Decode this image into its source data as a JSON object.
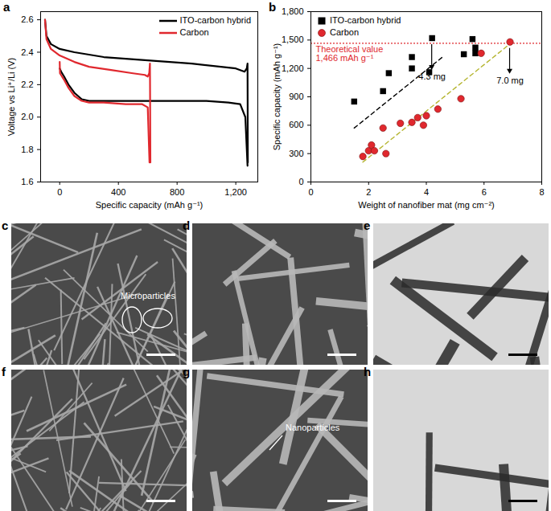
{
  "chart_data": [
    {
      "type": "line",
      "panel": "a",
      "xlabel": "Specific capacity (mAh g⁻¹)",
      "ylabel": "Voltage vs Li⁺/Li (V)",
      "xlim": [
        -130,
        1350
      ],
      "xticks": [
        0,
        400,
        800,
        {
          "value": 1200,
          "label": "1,200"
        }
      ],
      "ylim": [
        1.6,
        2.65
      ],
      "yticks": [
        1.6,
        1.8,
        {
          "value": 2,
          "label": "2.0"
        },
        2.2,
        2.4,
        2.6
      ],
      "legend": "top-right",
      "series": [
        {
          "name": "ITO-carbon hybrid",
          "color": "#000000",
          "x": [
            0,
            10,
            30,
            60,
            100,
            150,
            200,
            400,
            700,
            1000,
            1150,
            1230,
            1265,
            1280,
            null,
            -100,
            -90,
            -60,
            0,
            100,
            300,
            600,
            900,
            1200,
            1260,
            1275,
            1280,
            1282
          ],
          "values": [
            2.3,
            2.28,
            2.25,
            2.2,
            2.15,
            2.11,
            2.1,
            2.1,
            2.1,
            2.1,
            2.09,
            2.08,
            2.0,
            1.7,
            null,
            2.6,
            2.5,
            2.45,
            2.42,
            2.4,
            2.37,
            2.35,
            2.33,
            2.3,
            2.28,
            2.3,
            2.33,
            1.72
          ]
        },
        {
          "name": "Carbon",
          "color": "#e0282e",
          "x": [
            0,
            2,
            30,
            60,
            100,
            150,
            200,
            300,
            450,
            560,
            600,
            612,
            null,
            -100,
            -90,
            -60,
            0,
            100,
            200,
            350,
            500,
            580,
            600,
            610,
            615,
            618
          ],
          "values": [
            2.34,
            2.27,
            2.23,
            2.18,
            2.13,
            2.1,
            2.09,
            2.09,
            2.08,
            2.08,
            2.06,
            1.72,
            null,
            2.6,
            2.48,
            2.42,
            2.38,
            2.34,
            2.31,
            2.29,
            2.27,
            2.26,
            2.25,
            2.27,
            2.33,
            1.72
          ]
        }
      ]
    },
    {
      "type": "scatter",
      "panel": "b",
      "xlabel": "Weight of nanofiber mat (mg cm⁻²)",
      "ylabel": "Specific capacity (mAh g⁻¹)",
      "xlim": [
        0,
        8
      ],
      "xticks": [
        0,
        2,
        4,
        6,
        8
      ],
      "ylim": [
        0,
        1800
      ],
      "yticks": [
        0,
        300,
        600,
        900,
        {
          "value": 1200,
          "label": "1,200"
        },
        {
          "value": 1500,
          "label": "1,500"
        },
        {
          "value": 1800,
          "label": "1,800"
        }
      ],
      "legend": "top-left",
      "series": [
        {
          "name": "ITO-carbon hybrid",
          "color": "#000000",
          "marker": "square",
          "x": [
            1.5,
            2.5,
            2.7,
            3.5,
            3.5,
            4.1,
            4.2,
            5.3,
            5.6,
            5.7,
            5.7
          ],
          "values": [
            850,
            960,
            1150,
            1200,
            1320,
            1160,
            1520,
            1350,
            1510,
            1420,
            1360
          ]
        },
        {
          "name": "Carbon",
          "color": "#e0282e",
          "marker": "circle",
          "x": [
            1.8,
            2.0,
            2.1,
            2.2,
            2.5,
            2.6,
            3.1,
            3.5,
            3.7,
            3.9,
            4.0,
            4.4,
            5.2,
            5.9,
            6.9
          ],
          "values": [
            270,
            330,
            390,
            330,
            570,
            300,
            620,
            630,
            680,
            600,
            700,
            770,
            880,
            1360,
            1480
          ]
        },
        {
          "type": "line",
          "line_style": "dashed",
          "color": "#000000",
          "x": [
            1.5,
            4.6
          ],
          "values": [
            570,
            1330
          ]
        },
        {
          "type": "line",
          "line_style": "dashed",
          "color": "#b5b530",
          "x": [
            1.8,
            6.9
          ],
          "values": [
            210,
            1460
          ]
        }
      ],
      "reference": {
        "value": 1466,
        "label": [
          "Theoretical value",
          "1,466 mAh g⁻¹"
        ],
        "color": "#e0282e",
        "line_style": "dotted"
      },
      "annotations": [
        {
          "text": "4.3 mg",
          "x": 4.2,
          "y": 1520
        },
        {
          "text": "7.0 mg",
          "x": 6.9,
          "y": 1480
        }
      ]
    }
  ],
  "images": [
    {
      "panel": "c",
      "annotation": "Microparticles"
    },
    {
      "panel": "d"
    },
    {
      "panel": "e"
    },
    {
      "panel": "f"
    },
    {
      "panel": "g",
      "annotation": "Nanoparticles"
    },
    {
      "panel": "h"
    }
  ]
}
